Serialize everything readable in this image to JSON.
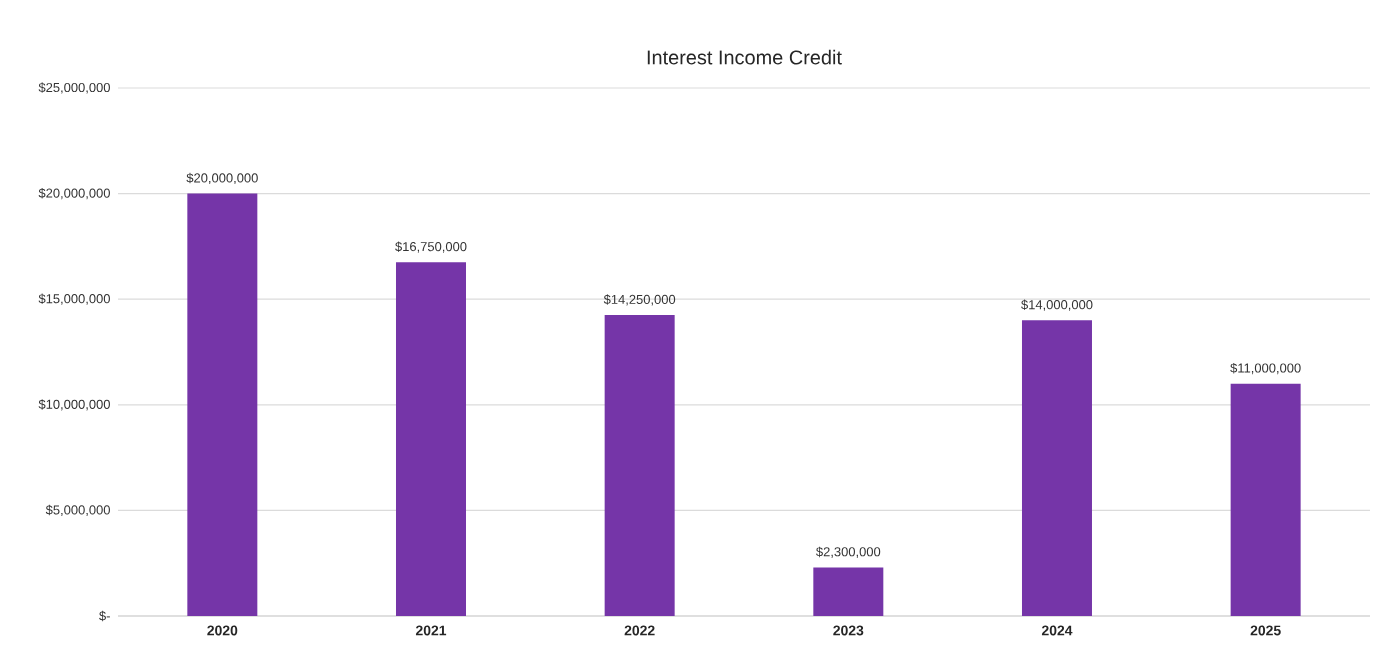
{
  "chart_data": {
    "type": "bar",
    "title": "Interest Income Credit",
    "categories": [
      "2020",
      "2021",
      "2022",
      "2023",
      "2024",
      "2025"
    ],
    "values": [
      20000000,
      16750000,
      14250000,
      2300000,
      14000000,
      11000000
    ],
    "value_labels": [
      "$20,000,000",
      "$16,750,000",
      "$14,250,000",
      "$2,300,000",
      "$14,000,000",
      "$11,000,000"
    ],
    "color": "#7535a8",
    "ylim": [
      0,
      25000000
    ],
    "yticks": [
      {
        "value": 0,
        "label": "$-"
      },
      {
        "value": 5000000,
        "label": "$5,000,000"
      },
      {
        "value": 10000000,
        "label": "$10,000,000"
      },
      {
        "value": 15000000,
        "label": "$15,000,000"
      },
      {
        "value": 20000000,
        "label": "$20,000,000"
      },
      {
        "value": 25000000,
        "label": "$25,000,000"
      }
    ],
    "grid": "y"
  }
}
